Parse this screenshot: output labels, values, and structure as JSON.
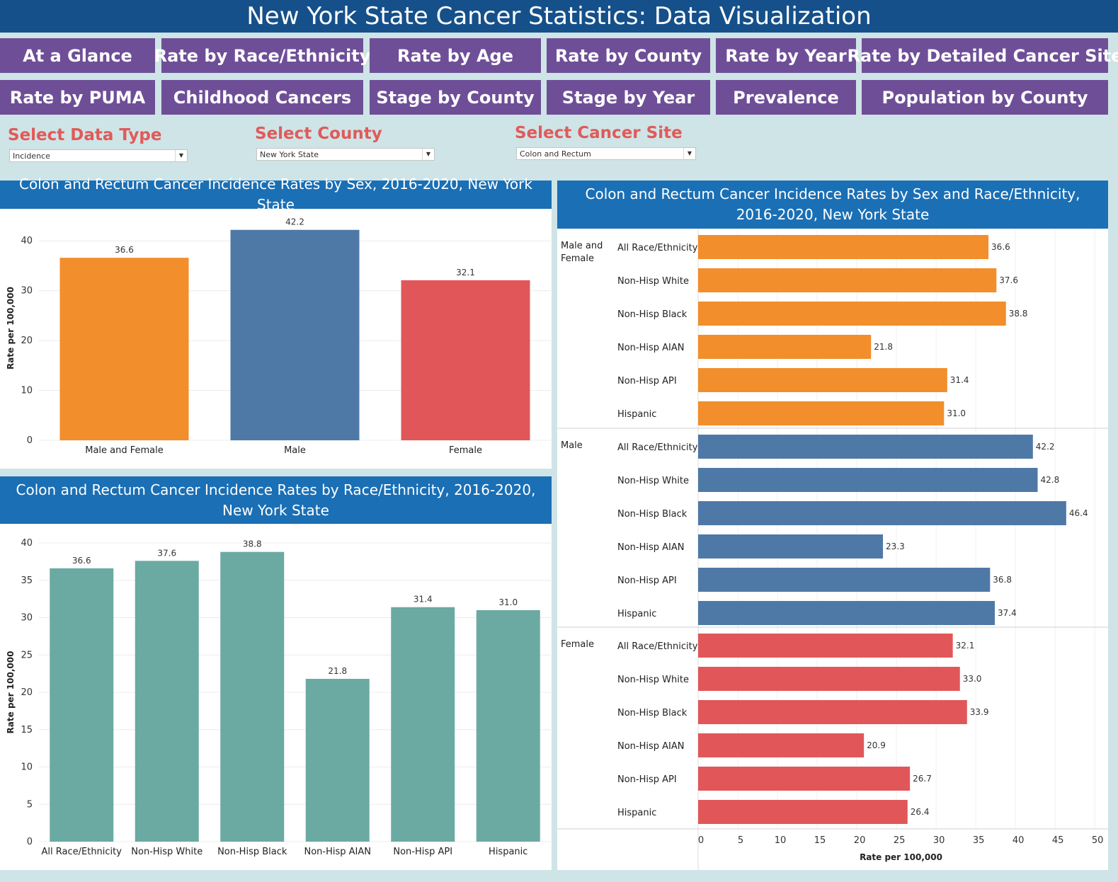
{
  "title": "New York State Cancer Statistics: Data Visualization",
  "nav": [
    "At a Glance",
    "Rate by Race/Ethnicity",
    "Rate by Age",
    "Rate by County",
    "Rate by Year",
    "Rate by Detailed Cancer Site",
    "Rate by PUMA",
    "Childhood Cancers",
    "Stage by County",
    "Stage by Year",
    "Prevalence",
    "Population by County"
  ],
  "filters": {
    "data_type": {
      "label": "Select Data Type",
      "value": "Incidence"
    },
    "county": {
      "label": "Select County",
      "value": "New York State"
    },
    "site": {
      "label": "Select Cancer Site",
      "value": "Colon and Rectum"
    }
  },
  "colors": {
    "male_and_female": "#f28e2b",
    "male": "#4e79a7",
    "female": "#e15759",
    "race": "#6aaaa2",
    "header": "#1a6fb5",
    "title_bar": "#15508a",
    "nav": "#6e4f97",
    "filter_label": "#e05a5a"
  },
  "chart_data": [
    {
      "id": "by_sex",
      "type": "bar",
      "title": "Colon and Rectum Cancer Incidence Rates by Sex, 2016-2020, New York State",
      "categories": [
        "Male and Female",
        "Male",
        "Female"
      ],
      "values": [
        36.6,
        42.2,
        32.1
      ],
      "value_labels": [
        "36.6",
        "42.2",
        "32.1"
      ],
      "ylabel": "Rate per 100,000",
      "ylim": [
        0,
        45
      ],
      "yticks": [
        0,
        10,
        20,
        30,
        40
      ]
    },
    {
      "id": "by_race",
      "type": "bar",
      "title": "Colon and Rectum Cancer Incidence Rates by Race/Ethnicity, 2016-2020, New York State",
      "categories": [
        "All Race/Ethnicity",
        "Non-Hisp White",
        "Non-Hisp Black",
        "Non-Hisp AIAN",
        "Non-Hisp API",
        "Hispanic"
      ],
      "values": [
        36.6,
        37.6,
        38.8,
        21.8,
        31.4,
        31.0
      ],
      "value_labels": [
        "36.6",
        "37.6",
        "38.8",
        "21.8",
        "31.4",
        "31.0"
      ],
      "ylabel": "Rate per 100,000",
      "ylim": [
        0,
        40
      ],
      "yticks": [
        0,
        5,
        10,
        15,
        20,
        25,
        30,
        35,
        40
      ]
    },
    {
      "id": "by_sex_race",
      "type": "bar",
      "orientation": "horizontal",
      "title": "Colon and Rectum Cancer Incidence Rates by Sex and Race/Ethnicity, 2016-2020, New York State",
      "categories": [
        "All Race/Ethnicity",
        "Non-Hisp White",
        "Non-Hisp Black",
        "Non-Hisp AIAN",
        "Non-Hisp API",
        "Hispanic"
      ],
      "groups": [
        {
          "name": "Male and Female",
          "values": [
            36.6,
            37.6,
            38.8,
            21.8,
            31.4,
            31.0
          ],
          "value_labels": [
            "36.6",
            "37.6",
            "38.8",
            "21.8",
            "31.4",
            "31.0"
          ]
        },
        {
          "name": "Male",
          "values": [
            42.2,
            42.8,
            46.4,
            23.3,
            36.8,
            37.4
          ],
          "value_labels": [
            "42.2",
            "42.8",
            "46.4",
            "23.3",
            "36.8",
            "37.4"
          ]
        },
        {
          "name": "Female",
          "values": [
            32.1,
            33.0,
            33.9,
            20.9,
            26.7,
            26.4
          ],
          "value_labels": [
            "32.1",
            "33.0",
            "33.9",
            "20.9",
            "26.7",
            "26.4"
          ]
        }
      ],
      "xlabel": "Rate per 100,000",
      "xlim": [
        0,
        51.5
      ],
      "xticks": [
        0,
        5,
        10,
        15,
        20,
        25,
        30,
        35,
        40,
        45,
        50
      ]
    }
  ]
}
